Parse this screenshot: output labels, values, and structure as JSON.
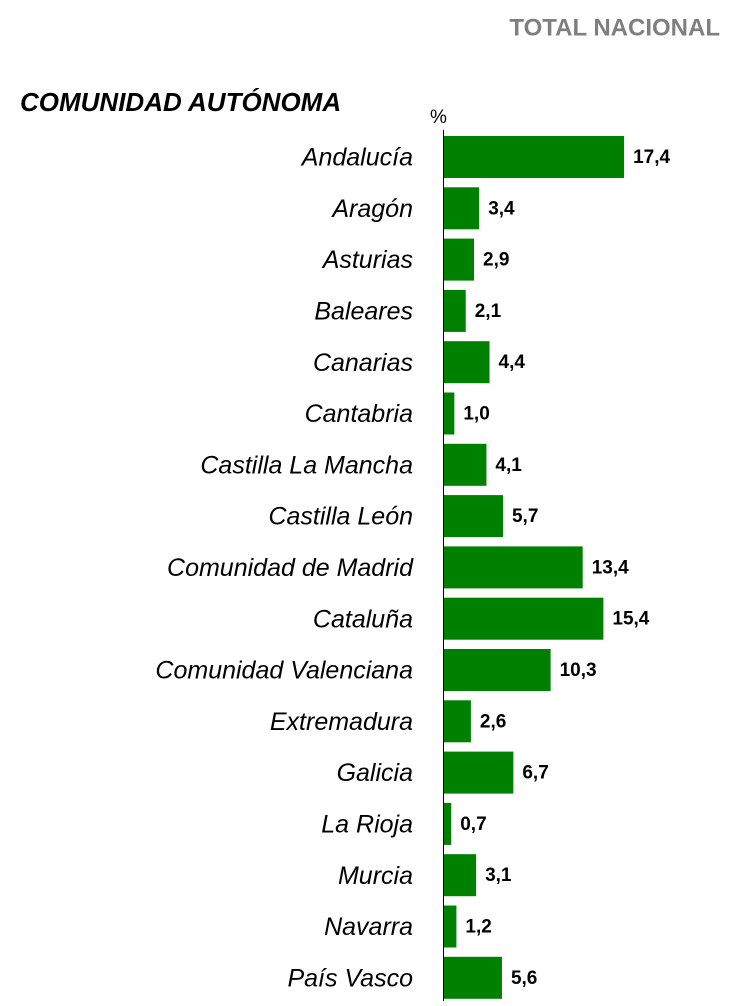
{
  "chart_data": {
    "type": "bar",
    "orientation": "horizontal",
    "title": "TOTAL NACIONAL",
    "category_axis_label": "COMUNIDAD AUTÓNOMA",
    "value_axis_label": "%",
    "categories": [
      "Andalucía",
      "Aragón",
      "Asturias",
      "Baleares",
      "Canarias",
      "Cantabria",
      "Castilla La Mancha",
      "Castilla León",
      "Comunidad de Madrid",
      "Cataluña",
      "Comunidad Valenciana",
      "Extremadura",
      "Galicia",
      "La Rioja",
      "Murcia",
      "Navarra",
      "País Vasco"
    ],
    "values": [
      17.4,
      3.4,
      2.9,
      2.1,
      4.4,
      1.0,
      4.1,
      5.7,
      13.4,
      15.4,
      10.3,
      2.6,
      6.7,
      0.7,
      3.1,
      1.2,
      5.6
    ],
    "value_labels": [
      "17,4",
      "3,4",
      "2,9",
      "2,1",
      "4,4",
      "1,0",
      "4,1",
      "5,7",
      "13,4",
      "15,4",
      "10,3",
      "2,6",
      "6,7",
      "0,7",
      "3,1",
      "1,2",
      "5,6"
    ],
    "color": "#008000",
    "xlim": [
      0,
      20
    ]
  }
}
